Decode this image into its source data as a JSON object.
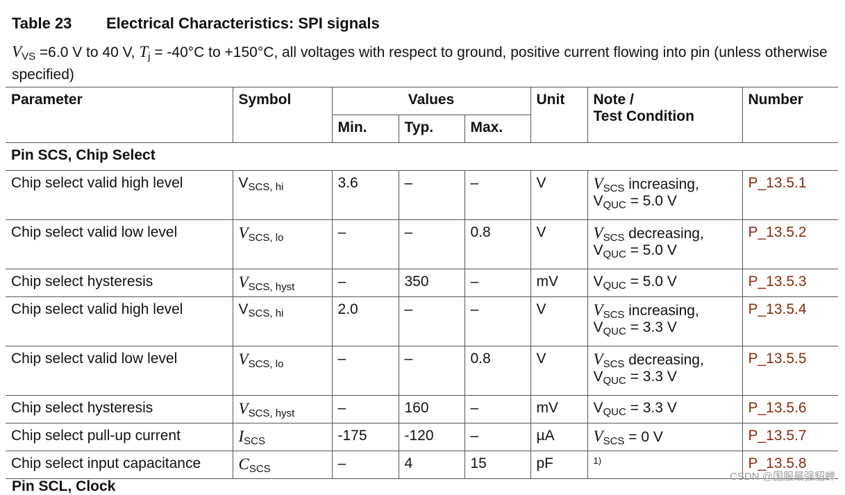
{
  "table_label": "Table 23",
  "table_title": "Electrical Characteristics: SPI signals",
  "conditions": {
    "vs_symbol": "V",
    "vs_sub": "VS",
    "vs_text": " =6.0 V to 40 V, ",
    "tj_symbol": "T",
    "tj_sub": "j",
    "rest": " = -40°C to +150°C, all voltages with respect to ground, positive current flowing into pin (unless otherwise specified)"
  },
  "headers": {
    "parameter": "Parameter",
    "symbol": "Symbol",
    "values": "Values",
    "min": "Min.",
    "typ": "Typ.",
    "max": "Max.",
    "unit": "Unit",
    "note_line1": "Note /",
    "note_line2": "Test Condition",
    "number": "Number"
  },
  "section1": "Pin SCS, Chip Select",
  "rows": [
    {
      "parameter": "Chip select valid high level",
      "sym": "V",
      "sub": "SCS, hi",
      "min": "3.6",
      "typ": "–",
      "max": "–",
      "unit": "V",
      "note_sym": "V",
      "note_sub": "SCS",
      "note_text": " increasing,",
      "note2_sym": "V",
      "note2_sub": "QUC",
      "note2_text": " = 5.0 V",
      "number": "P_13.5.1"
    },
    {
      "parameter": "Chip select valid low level",
      "sym": "V",
      "sub": "SCS, lo",
      "min": "–",
      "typ": "–",
      "max": "0.8",
      "unit": "V",
      "note_sym": "V",
      "note_sub": "SCS",
      "note_text": " decreasing,",
      "note2_sym": "V",
      "note2_sub": "QUC",
      "note2_text": " = 5.0 V",
      "number": "P_13.5.2"
    },
    {
      "parameter": "Chip select hysteresis",
      "sym": "V",
      "sub": "SCS, hyst",
      "min": "–",
      "typ": "350",
      "max": "–",
      "unit": "mV",
      "note_sym": "V",
      "note_sub": "QUC",
      "note_text": " = 5.0 V",
      "number": "P_13.5.3"
    },
    {
      "parameter": "Chip select valid high level",
      "sym": "V",
      "sub": "SCS, hi",
      "min": "2.0",
      "typ": "–",
      "max": "–",
      "unit": "V",
      "note_sym": "V",
      "note_sub": "SCS",
      "note_text": " increasing,",
      "note2_sym": "V",
      "note2_sub": "QUC",
      "note2_text": " = 3.3 V",
      "number": "P_13.5.4"
    },
    {
      "parameter": "Chip select valid low level",
      "sym": "V",
      "sub": "SCS, lo",
      "min": "–",
      "typ": "–",
      "max": "0.8",
      "unit": "V",
      "note_sym": "V",
      "note_sub": "SCS",
      "note_text": " decreasing,",
      "note2_sym": "V",
      "note2_sub": "QUC",
      "note2_text": " = 3.3 V",
      "number": "P_13.5.5"
    },
    {
      "parameter": "Chip select hysteresis",
      "sym": "V",
      "sub": "SCS, hyst",
      "min": "–",
      "typ": "160",
      "max": "–",
      "unit": "mV",
      "note_sym": "V",
      "note_sub": "QUC",
      "note_text": " = 3.3 V",
      "number": "P_13.5.6"
    },
    {
      "parameter": "Chip select pull-up current",
      "sym": "I",
      "sub": "SCS",
      "min": "-175",
      "typ": "-120",
      "max": "–",
      "unit": "µA",
      "note_sym": "V",
      "note_sub": "SCS",
      "note_text": " = 0 V",
      "number": "P_13.5.7"
    },
    {
      "parameter": "Chip select input capacitance",
      "sym": "C",
      "sub": "SCS",
      "min": "–",
      "typ": "4",
      "max": "15",
      "unit": "pF",
      "footnote": "1)",
      "number": "P_13.5.8"
    }
  ],
  "section2_partial": "Pin SCL, Clock",
  "watermark": "CSDN @国服最强貂蝉"
}
